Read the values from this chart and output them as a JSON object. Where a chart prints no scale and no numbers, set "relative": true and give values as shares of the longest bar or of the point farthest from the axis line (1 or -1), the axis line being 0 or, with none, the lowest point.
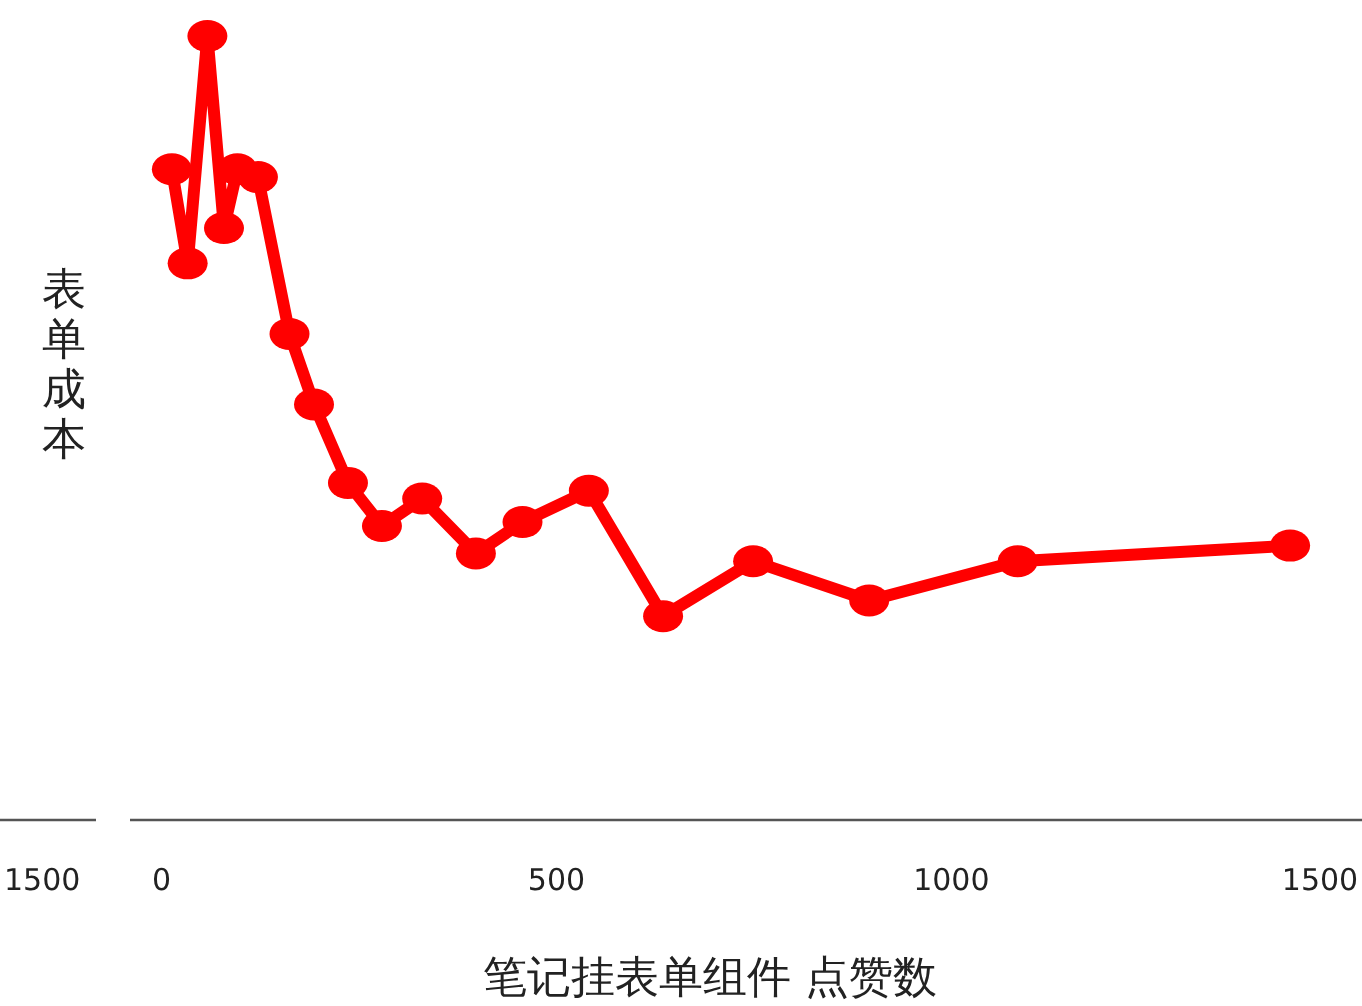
{
  "chart_data": [
    {
      "type": "other",
      "annotations": [
        "1500"
      ]
    },
    {
      "type": "line",
      "xlabel": "笔记挂表单组件  点赞数",
      "ylabel": "表单成本",
      "relative": true,
      "xlim": [
        -40,
        1520
      ],
      "xticks": [
        0,
        500,
        1000,
        1500
      ],
      "marker": "circle",
      "line_style": "solid",
      "grid": false,
      "series": [
        {
          "color": "#ff0000",
          "x": [
            13,
            33,
            58,
            79,
            96,
            122,
            162,
            193,
            236,
            279,
            330,
            398,
            457,
            541,
            635,
            749,
            896,
            1084,
            1429
          ],
          "values": [
            0.83,
            0.71,
            1,
            0.755,
            0.83,
            0.82,
            0.62,
            0.53,
            0.43,
            0.375,
            0.41,
            0.34,
            0.38,
            0.42,
            0.26,
            0.33,
            0.28,
            0.33,
            0.35
          ]
        }
      ]
    }
  ]
}
